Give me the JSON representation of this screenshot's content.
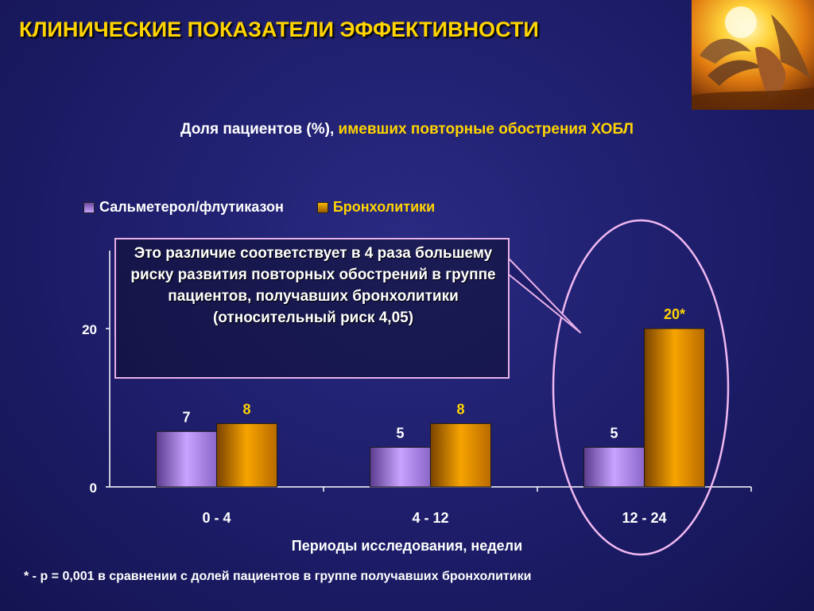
{
  "title": "КЛИНИЧЕСКИЕ ПОКАЗАТЕЛИ ЭФФЕКТИВНОСТИ",
  "subtitle_part1": "Доля пациентов (%),",
  "subtitle_part2": "имевших повторные обострения ХОБЛ",
  "callout": "Это различие соответствует в 4 раза большему риску развития повторных обострений в группе пациентов, получавших бронхолитики (относительный риск 4,05)",
  "footnote": "* - p = 0,001 в сравнении с долей пациентов в группе получавших бронхолитики",
  "logo_icon": "winged-figure-sun-image",
  "colors": {
    "title": "#ffd400",
    "series1": "#c9a3ff",
    "series2": "#f39a00",
    "highlight_outline": "#f0b8f0"
  },
  "chart_data": {
    "type": "bar",
    "categories": [
      "0 - 4",
      "4 - 12",
      "12 - 24"
    ],
    "series": [
      {
        "name": "Сальметерол/флутиказон",
        "values": [
          7,
          5,
          5
        ],
        "labels": [
          "7",
          "5",
          "5"
        ]
      },
      {
        "name": "Бронхолитики",
        "values": [
          8,
          8,
          20
        ],
        "labels": [
          "8",
          "8",
          "20*"
        ]
      }
    ],
    "xlabel": "Периоды исследования, недели",
    "ylabel": "",
    "yticks": [
      "0",
      "20"
    ],
    "ylim": [
      0,
      20
    ],
    "legend_position": "top-left",
    "grid": false,
    "highlighted_category": "12 - 24"
  }
}
